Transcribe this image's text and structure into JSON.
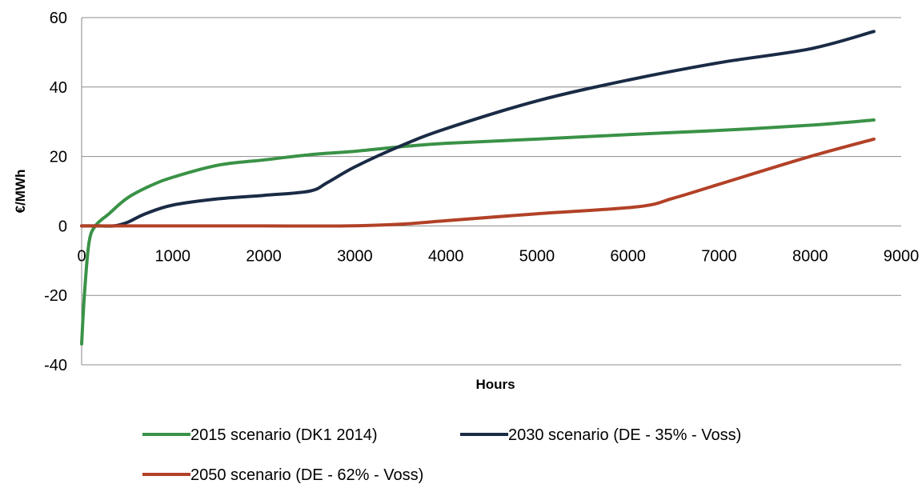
{
  "chart_data": {
    "type": "line",
    "title": "",
    "xlabel": "Hours",
    "ylabel": "€/MWh",
    "xlim": [
      0,
      9000
    ],
    "ylim": [
      -40,
      60
    ],
    "x_ticks": [
      "0",
      "1000",
      "2000",
      "3000",
      "4000",
      "5000",
      "6000",
      "7000",
      "8000",
      "9000"
    ],
    "y_ticks": [
      "60",
      "40",
      "20",
      "0",
      "-20",
      "-40"
    ],
    "grid": "horizontal",
    "legend_position": "bottom",
    "series": [
      {
        "name": "2015 scenario (DK1 2014)",
        "color": "#3a9246",
        "x": [
          0,
          30,
          80,
          150,
          300,
          500,
          750,
          1000,
          1500,
          2000,
          2500,
          3000,
          3500,
          4000,
          5000,
          6000,
          7000,
          8000,
          8700
        ],
        "y": [
          -34,
          -20,
          -5,
          0,
          3.5,
          8,
          11.5,
          14,
          17.5,
          19,
          20.5,
          21.5,
          22.8,
          23.8,
          25,
          26.3,
          27.5,
          29,
          30.5
        ]
      },
      {
        "name": "2030 scenario (DE - 35% - Voss)",
        "color": "#1a2b45",
        "x": [
          0,
          200,
          350,
          500,
          700,
          1000,
          1500,
          2000,
          2500,
          2700,
          3000,
          3500,
          4000,
          5000,
          6000,
          7000,
          8000,
          8700
        ],
        "y": [
          0,
          0,
          0,
          1,
          3.5,
          6,
          7.8,
          8.8,
          10,
          12.5,
          17,
          23,
          28,
          36,
          42,
          47,
          51,
          56
        ]
      },
      {
        "name": "2050 scenario (DE - 62% - Voss)",
        "color": "#b24127",
        "x": [
          0,
          1000,
          2000,
          2900,
          3500,
          4000,
          5000,
          6100,
          6500,
          7000,
          8000,
          8700
        ],
        "y": [
          0,
          0,
          0,
          0,
          0.5,
          1.5,
          3.5,
          5.5,
          8,
          12,
          20,
          25
        ]
      }
    ]
  }
}
